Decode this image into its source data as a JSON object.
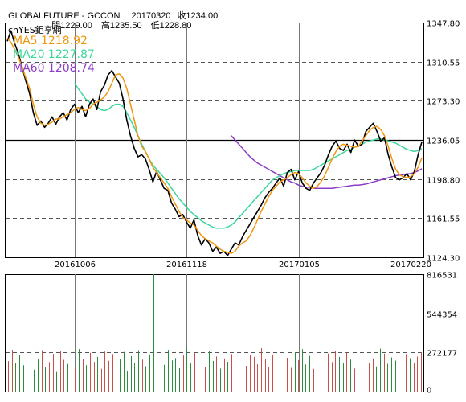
{
  "header": {
    "symbol": "GLOBALFUTURE - GCCON",
    "date": "20170320",
    "close_label": "收1234.00",
    "open_label": "開1229.00",
    "high_label": "高1235.50",
    "low_label": "低1228.80"
  },
  "legend": {
    "source": "cnYES鉅亨網",
    "ma5": "MA5 1218.92",
    "ma20": "MA20 1227.87",
    "ma60": "MA60 1208.74"
  },
  "colors": {
    "price": "#000000",
    "ma5": "#f0960f",
    "ma20": "#3cd79b",
    "ma60": "#8c3cc8",
    "vol_red": "#c8504b",
    "vol_green": "#2a8c3c",
    "grid_dash": "#555555",
    "ref_line": "#000000"
  },
  "chart_data": [
    {
      "type": "line",
      "x_tick_labels": [
        "20161006",
        "20161118",
        "20170105",
        "20170220"
      ],
      "y_tick_labels": [
        "1347.80",
        "1310.55",
        "1273.30",
        "1236.05",
        "1198.80",
        "1161.55",
        "1124.30"
      ],
      "ylim": [
        1124.3,
        1347.8
      ],
      "reference_line": 1236.05,
      "series": [
        {
          "name": "MA5",
          "key": "ma5",
          "values": [
            1333,
            1329,
            1322,
            1315,
            1305,
            1295,
            1285,
            1270,
            1258,
            1252,
            1250,
            1251,
            1253,
            1256,
            1256,
            1258,
            1260,
            1262,
            1265,
            1267,
            1265,
            1264,
            1266,
            1270,
            1272,
            1274,
            1277,
            1282,
            1290,
            1298,
            1299,
            1295,
            1285,
            1270,
            1255,
            1240,
            1230,
            1225,
            1218,
            1210,
            1205,
            1200,
            1195,
            1190,
            1182,
            1175,
            1168,
            1162,
            1160,
            1157,
            1155,
            1150,
            1145,
            1142,
            1140,
            1138,
            1135,
            1132,
            1130,
            1129,
            1128,
            1130,
            1135,
            1138,
            1140,
            1145,
            1152,
            1160,
            1168,
            1175,
            1182,
            1188,
            1192,
            1196,
            1198,
            1200,
            1203,
            1205,
            1204,
            1200,
            1195,
            1192,
            1190,
            1192,
            1196,
            1202,
            1210,
            1218,
            1225,
            1230,
            1232,
            1231,
            1230,
            1229,
            1230,
            1235,
            1240,
            1245,
            1248,
            1249,
            1246,
            1240,
            1230,
            1218,
            1208,
            1203,
            1201,
            1200,
            1201,
            1204,
            1210,
            1218.92
          ]
        },
        {
          "name": "MA20",
          "key": "ma20",
          "values": [
            null,
            null,
            null,
            null,
            null,
            null,
            null,
            null,
            null,
            null,
            null,
            null,
            null,
            null,
            null,
            null,
            null,
            null,
            1290,
            1285,
            1280,
            1275,
            1272,
            1270,
            1268,
            1265,
            1264,
            1265,
            1268,
            1270,
            1270,
            1268,
            1262,
            1255,
            1248,
            1240,
            1232,
            1225,
            1218,
            1212,
            1208,
            1204,
            1200,
            1195,
            1190,
            1185,
            1180,
            1176,
            1172,
            1168,
            1165,
            1162,
            1159,
            1157,
            1155,
            1153,
            1152,
            1152,
            1152,
            1153,
            1155,
            1158,
            1162,
            1166,
            1170,
            1174,
            1178,
            1182,
            1186,
            1190,
            1194,
            1198,
            1200,
            1202,
            1204,
            1205,
            1206,
            1207,
            1207,
            1207,
            1207,
            1207,
            1208,
            1210,
            1212,
            1214,
            1216,
            1218,
            1220,
            1222,
            1224,
            1226,
            1227,
            1229,
            1230,
            1232,
            1234,
            1235,
            1236,
            1237,
            1237,
            1236,
            1235,
            1234,
            1233,
            1231,
            1229,
            1227,
            1226,
            1225,
            1226,
            1227.87
          ]
        },
        {
          "name": "MA60",
          "key": "ma60",
          "values": [
            null,
            null,
            null,
            null,
            null,
            null,
            null,
            null,
            null,
            null,
            null,
            null,
            null,
            null,
            null,
            null,
            null,
            null,
            null,
            null,
            null,
            null,
            null,
            null,
            null,
            null,
            null,
            null,
            null,
            null,
            null,
            null,
            null,
            null,
            null,
            null,
            null,
            null,
            null,
            null,
            null,
            null,
            null,
            null,
            null,
            null,
            null,
            null,
            null,
            null,
            null,
            null,
            null,
            null,
            null,
            null,
            null,
            null,
            null,
            null,
            1240,
            1236,
            1232,
            1228,
            1224,
            1220,
            1217,
            1214,
            1212,
            1210,
            1208,
            1206,
            1204,
            1202,
            1200,
            1198,
            1196,
            1195,
            1193,
            1192,
            1191,
            1191,
            1190,
            1190,
            1190,
            1190,
            1190,
            1190,
            1190.5,
            1191,
            1191.5,
            1192,
            1192.5,
            1193,
            1193,
            1193.5,
            1194,
            1195,
            1196,
            1197,
            1198,
            1199,
            1200,
            1201,
            1202,
            1202.5,
            1203,
            1203.5,
            1204,
            1205,
            1206.5,
            1208.74
          ]
        },
        {
          "name": "Price",
          "key": "price",
          "values": [
            1330,
            1340,
            1328,
            1318,
            1305,
            1292,
            1280,
            1262,
            1250,
            1254,
            1248,
            1252,
            1258,
            1251,
            1258,
            1262,
            1255,
            1265,
            1270,
            1262,
            1268,
            1258,
            1270,
            1275,
            1265,
            1282,
            1288,
            1298,
            1302,
            1296,
            1290,
            1275,
            1255,
            1240,
            1228,
            1220,
            1222,
            1218,
            1208,
            1196,
            1206,
            1198,
            1190,
            1188,
            1176,
            1170,
            1163,
            1165,
            1158,
            1152,
            1160,
            1145,
            1136,
            1142,
            1138,
            1130,
            1134,
            1128,
            1130,
            1126,
            1132,
            1138,
            1136,
            1144,
            1150,
            1156,
            1162,
            1168,
            1174,
            1181,
            1186,
            1190,
            1195,
            1200,
            1192,
            1205,
            1208,
            1198,
            1206,
            1195,
            1190,
            1188,
            1195,
            1200,
            1205,
            1212,
            1222,
            1230,
            1235,
            1228,
            1226,
            1232,
            1224,
            1236,
            1230,
            1232,
            1244,
            1248,
            1252,
            1244,
            1235,
            1238,
            1222,
            1210,
            1200,
            1198,
            1200,
            1204,
            1198,
            1206,
            1222,
            1234
          ]
        }
      ]
    },
    {
      "type": "bar",
      "y_tick_labels": [
        "816531",
        "544354",
        "272177",
        "0"
      ],
      "ylim": [
        0,
        816531
      ],
      "series": [
        {
          "name": "Volume",
          "values": [
            212000,
            291000,
            198000,
            257000,
            183000,
            244000,
            269000,
            152000,
            230000,
            288000,
            173000,
            205000,
            262000,
            136000,
            281000,
            221000,
            192000,
            253000,
            167000,
            296000,
            228000,
            184000,
            270000,
            206000,
            241000,
            159000,
            278000,
            214000,
            261000,
            189000,
            229000,
            276000,
            143000,
            247000,
            199000,
            288000,
            222000,
            176000,
            258000,
            816531,
            311000,
            248000,
            186000,
            290000,
            217000,
            233000,
            162000,
            251000,
            302000,
            195000,
            268000,
            204000,
            237000,
            172000,
            282000,
            213000,
            244000,
            160000,
            231000,
            207000,
            261000,
            145000,
            297000,
            213000,
            179000,
            255000,
            241000,
            190000,
            301000,
            226000,
            170000,
            258000,
            212000,
            283000,
            201000,
            235000,
            165000,
            274000,
            219000,
            296000,
            188000,
            248000,
            158000,
            292000,
            227000,
            181000,
            264000,
            205000,
            280000,
            241000,
            196000,
            271000,
            222000,
            160000,
            287000,
            213000,
            249000,
            201000,
            231000,
            175000,
            299000,
            264000,
            193000,
            238000,
            215000,
            276000,
            186000,
            261000,
            232000,
            198000,
            243000,
            272000
          ]
        }
      ]
    }
  ]
}
